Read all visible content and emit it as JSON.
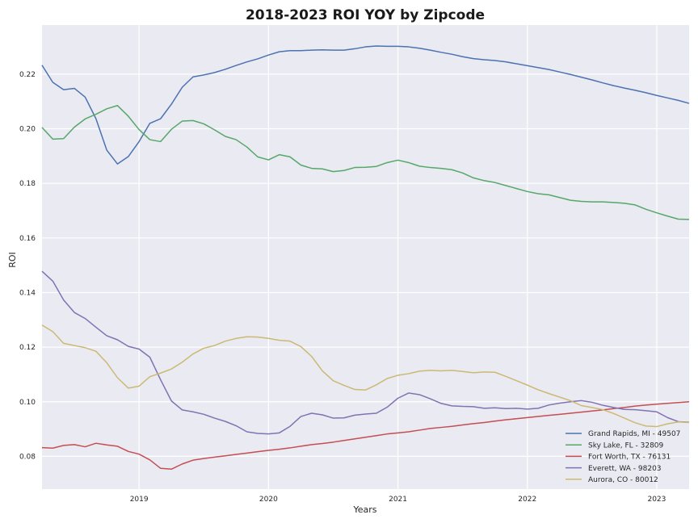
{
  "chart_data": {
    "type": "line",
    "title": "2018-2023 ROI YOY by Zipcode",
    "xlabel": "Years",
    "ylabel": "ROI",
    "x_range": [
      2018.25,
      2023.25
    ],
    "ylim": [
      0.068,
      0.238
    ],
    "x_ticks": [
      2019,
      2020,
      2021,
      2022,
      2023
    ],
    "x_tick_labels": [
      "2019",
      "2020",
      "2021",
      "2022",
      "2023"
    ],
    "y_ticks": [
      0.08,
      0.1,
      0.12,
      0.14,
      0.16,
      0.18,
      0.2,
      0.22
    ],
    "y_tick_labels": [
      "0.08",
      "0.10",
      "0.12",
      "0.14",
      "0.16",
      "0.18",
      "0.20",
      "0.22"
    ],
    "grid": true,
    "legend_position": "lower-right",
    "x": [
      "2018-04",
      "2018-05",
      "2018-06",
      "2018-07",
      "2018-08",
      "2018-09",
      "2018-10",
      "2018-11",
      "2018-12",
      "2019-01",
      "2019-02",
      "2019-03",
      "2019-04",
      "2019-05",
      "2019-06",
      "2019-07",
      "2019-08",
      "2019-09",
      "2019-10",
      "2019-11",
      "2019-12",
      "2020-01",
      "2020-02",
      "2020-03",
      "2020-04",
      "2020-05",
      "2020-06",
      "2020-07",
      "2020-08",
      "2020-09",
      "2020-10",
      "2020-11",
      "2020-12",
      "2021-01",
      "2021-02",
      "2021-03",
      "2021-04",
      "2021-05",
      "2021-06",
      "2021-07",
      "2021-08",
      "2021-09",
      "2021-10",
      "2021-11",
      "2021-12",
      "2022-01",
      "2022-02",
      "2022-03",
      "2022-04",
      "2022-05",
      "2022-06",
      "2022-07",
      "2022-08",
      "2022-09",
      "2022-10",
      "2022-11",
      "2022-12",
      "2023-01",
      "2023-02",
      "2023-03",
      "2023-04"
    ],
    "series": [
      {
        "name": "Grand Rapids, MI - 49507",
        "color": "#4c72b0",
        "values": [
          0.2233,
          0.217,
          0.2143,
          0.2148,
          0.2116,
          0.2037,
          0.1922,
          0.1871,
          0.1898,
          0.1953,
          0.202,
          0.2037,
          0.209,
          0.2152,
          0.219,
          0.2197,
          0.2206,
          0.2218,
          0.2232,
          0.2245,
          0.2256,
          0.227,
          0.2282,
          0.2286,
          0.2286,
          0.2288,
          0.2289,
          0.2288,
          0.2288,
          0.2293,
          0.23,
          0.2303,
          0.2302,
          0.2302,
          0.23,
          0.2295,
          0.2288,
          0.228,
          0.2273,
          0.2264,
          0.2257,
          0.2253,
          0.225,
          0.2245,
          0.2238,
          0.2231,
          0.2224,
          0.2217,
          0.2208,
          0.2199,
          0.2189,
          0.2179,
          0.2168,
          0.2158,
          0.2149,
          0.2141,
          0.2132,
          0.2122,
          0.2113,
          0.2104,
          0.2093
        ]
      },
      {
        "name": "Sky Lake, FL - 32809",
        "color": "#55a868",
        "values": [
          0.2005,
          0.1962,
          0.1964,
          0.2006,
          0.2036,
          0.2053,
          0.2073,
          0.2085,
          0.2046,
          0.1997,
          0.196,
          0.1953,
          0.1998,
          0.2028,
          0.203,
          0.2018,
          0.1996,
          0.1972,
          0.196,
          0.1933,
          0.1897,
          0.1886,
          0.1905,
          0.1897,
          0.1867,
          0.1855,
          0.1853,
          0.1843,
          0.1847,
          0.1858,
          0.1859,
          0.1862,
          0.1876,
          0.1885,
          0.1876,
          0.1863,
          0.1858,
          0.1855,
          0.185,
          0.1838,
          0.182,
          0.181,
          0.1803,
          0.1792,
          0.1781,
          0.177,
          0.1762,
          0.1758,
          0.1748,
          0.1738,
          0.1734,
          0.1732,
          0.1732,
          0.173,
          0.1727,
          0.1721,
          0.1705,
          0.1692,
          0.168,
          0.1669,
          0.1668
        ]
      },
      {
        "name": "Fort Worth, TX - 76131",
        "color": "#c44e52",
        "values": [
          0.0832,
          0.083,
          0.084,
          0.0843,
          0.0835,
          0.0848,
          0.0842,
          0.0837,
          0.0818,
          0.0808,
          0.0787,
          0.0756,
          0.0753,
          0.0772,
          0.0786,
          0.0792,
          0.0797,
          0.0802,
          0.0807,
          0.0812,
          0.0817,
          0.0822,
          0.0826,
          0.0831,
          0.0837,
          0.0843,
          0.0847,
          0.0852,
          0.0858,
          0.0864,
          0.087,
          0.0876,
          0.0882,
          0.0886,
          0.089,
          0.0896,
          0.0902,
          0.0906,
          0.091,
          0.0915,
          0.092,
          0.0924,
          0.0929,
          0.0934,
          0.0938,
          0.0942,
          0.0946,
          0.095,
          0.0954,
          0.0958,
          0.0962,
          0.0966,
          0.097,
          0.0975,
          0.0979,
          0.0984,
          0.0988,
          0.0991,
          0.0994,
          0.0997,
          0.1
        ]
      },
      {
        "name": "Everett, WA - 98203",
        "color": "#8172b2",
        "values": [
          0.1478,
          0.1442,
          0.1373,
          0.1327,
          0.1305,
          0.1273,
          0.1242,
          0.1227,
          0.1203,
          0.1193,
          0.1163,
          0.108,
          0.1003,
          0.097,
          0.0963,
          0.0954,
          0.094,
          0.0928,
          0.0912,
          0.089,
          0.0884,
          0.0882,
          0.0886,
          0.091,
          0.0946,
          0.0958,
          0.0952,
          0.094,
          0.0941,
          0.0951,
          0.0955,
          0.0958,
          0.098,
          0.1013,
          0.1032,
          0.1026,
          0.1011,
          0.0994,
          0.0985,
          0.0983,
          0.0982,
          0.0976,
          0.0978,
          0.0975,
          0.0976,
          0.0973,
          0.0976,
          0.0988,
          0.0995,
          0.1,
          0.1004,
          0.0998,
          0.0987,
          0.0979,
          0.0972,
          0.0971,
          0.0967,
          0.0963,
          0.0942,
          0.0927,
          0.0925
        ]
      },
      {
        "name": "Aurora, CO - 80012",
        "color": "#ccb974",
        "values": [
          0.1281,
          0.1257,
          0.1214,
          0.1206,
          0.1198,
          0.1185,
          0.1143,
          0.1088,
          0.105,
          0.1057,
          0.1092,
          0.1105,
          0.112,
          0.1145,
          0.1175,
          0.1196,
          0.1206,
          0.1222,
          0.1232,
          0.1238,
          0.1237,
          0.1232,
          0.1225,
          0.1222,
          0.1202,
          0.1166,
          0.1113,
          0.1077,
          0.106,
          0.1045,
          0.1043,
          0.1062,
          0.1085,
          0.1097,
          0.1103,
          0.1112,
          0.1115,
          0.1113,
          0.1115,
          0.1111,
          0.1106,
          0.1109,
          0.1108,
          0.1093,
          0.1077,
          0.1061,
          0.1044,
          0.103,
          0.1017,
          0.1004,
          0.0986,
          0.0979,
          0.0971,
          0.0957,
          0.094,
          0.0923,
          0.0911,
          0.0909,
          0.0919,
          0.0926,
          0.0924
        ]
      }
    ]
  }
}
